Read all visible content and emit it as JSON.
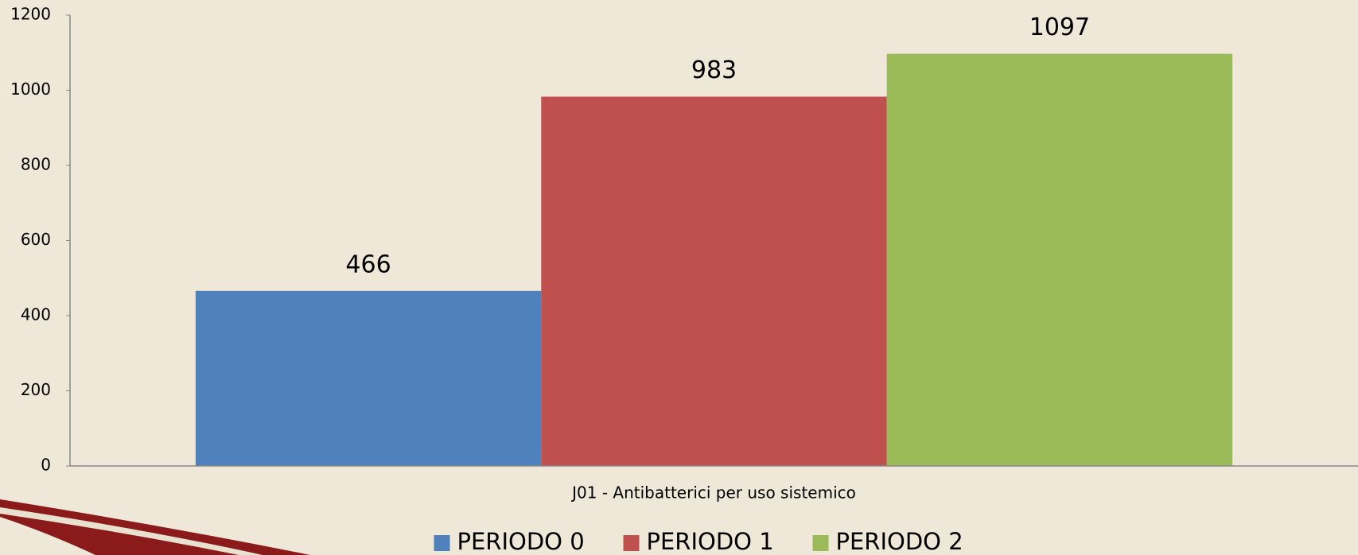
{
  "chart_data": {
    "type": "bar",
    "categories": [
      "J01 - Antibatterici per uso sistemico"
    ],
    "series": [
      {
        "name": "PERIODO 0",
        "color": "#4f81bd",
        "values": [
          466
        ]
      },
      {
        "name": "PERIODO 1",
        "color": "#c0504d",
        "values": [
          983
        ]
      },
      {
        "name": "PERIODO 2",
        "color": "#9bbb59",
        "values": [
          1097
        ]
      }
    ],
    "ylim": [
      0,
      1200
    ],
    "yticks": [
      0,
      200,
      400,
      600,
      800,
      1000,
      1200
    ],
    "grid": false,
    "legend": "bottom"
  }
}
